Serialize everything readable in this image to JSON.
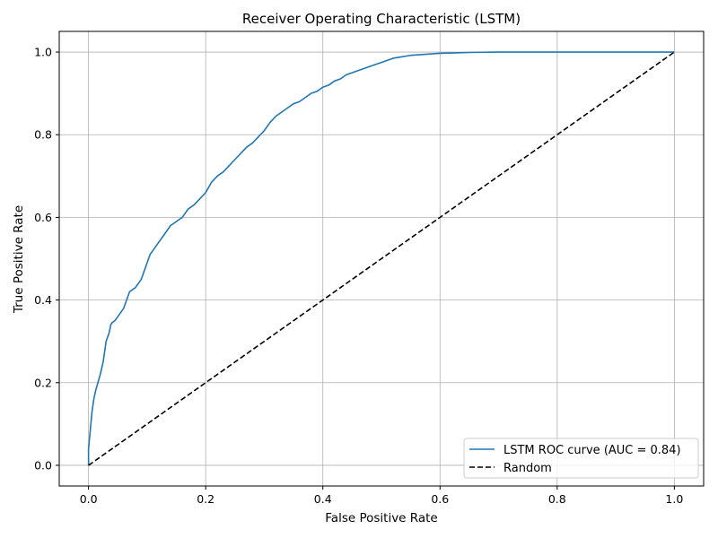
{
  "chart_data": {
    "type": "line",
    "title": "Receiver Operating Characteristic (LSTM)",
    "xlabel": "False Positive Rate",
    "ylabel": "True Positive Rate",
    "xlim": [
      -0.05,
      1.05
    ],
    "ylim": [
      -0.05,
      1.05
    ],
    "xticks": [
      0.0,
      0.2,
      0.4,
      0.6,
      0.8,
      1.0
    ],
    "yticks": [
      0.0,
      0.2,
      0.4,
      0.6,
      0.8,
      1.0
    ],
    "xtick_labels": [
      "0.0",
      "0.2",
      "0.4",
      "0.6",
      "0.8",
      "1.0"
    ],
    "ytick_labels": [
      "0.0",
      "0.2",
      "0.4",
      "0.6",
      "0.8",
      "1.0"
    ],
    "grid": true,
    "legend_position": "lower-right",
    "series": [
      {
        "name": "LSTM ROC curve (AUC = 0.84)",
        "color": "#1f77b4",
        "style": "solid",
        "x": [
          0.0,
          0.0,
          0.002,
          0.004,
          0.006,
          0.009,
          0.012,
          0.016,
          0.02,
          0.025,
          0.03,
          0.035,
          0.038,
          0.04,
          0.045,
          0.05,
          0.06,
          0.065,
          0.07,
          0.075,
          0.08,
          0.09,
          0.1,
          0.105,
          0.11,
          0.115,
          0.12,
          0.13,
          0.14,
          0.15,
          0.16,
          0.17,
          0.175,
          0.18,
          0.19,
          0.2,
          0.21,
          0.22,
          0.23,
          0.24,
          0.25,
          0.26,
          0.27,
          0.28,
          0.29,
          0.3,
          0.31,
          0.32,
          0.33,
          0.34,
          0.35,
          0.36,
          0.37,
          0.38,
          0.39,
          0.4,
          0.41,
          0.42,
          0.43,
          0.44,
          0.45,
          0.46,
          0.47,
          0.48,
          0.5,
          0.52,
          0.55,
          0.6,
          0.65,
          0.7,
          1.0
        ],
        "y": [
          0.0,
          0.04,
          0.07,
          0.1,
          0.13,
          0.16,
          0.18,
          0.2,
          0.22,
          0.25,
          0.3,
          0.32,
          0.34,
          0.345,
          0.35,
          0.36,
          0.38,
          0.4,
          0.42,
          0.425,
          0.43,
          0.45,
          0.49,
          0.51,
          0.52,
          0.53,
          0.54,
          0.56,
          0.58,
          0.59,
          0.6,
          0.62,
          0.625,
          0.63,
          0.645,
          0.66,
          0.685,
          0.7,
          0.71,
          0.725,
          0.74,
          0.755,
          0.77,
          0.78,
          0.795,
          0.81,
          0.83,
          0.845,
          0.855,
          0.865,
          0.875,
          0.88,
          0.89,
          0.9,
          0.905,
          0.915,
          0.92,
          0.93,
          0.935,
          0.945,
          0.95,
          0.955,
          0.96,
          0.965,
          0.975,
          0.985,
          0.992,
          0.997,
          0.999,
          1.0,
          1.0
        ]
      },
      {
        "name": "Random",
        "color": "#000000",
        "style": "dashed",
        "x": [
          0.0,
          1.0
        ],
        "y": [
          0.0,
          1.0
        ]
      }
    ]
  }
}
